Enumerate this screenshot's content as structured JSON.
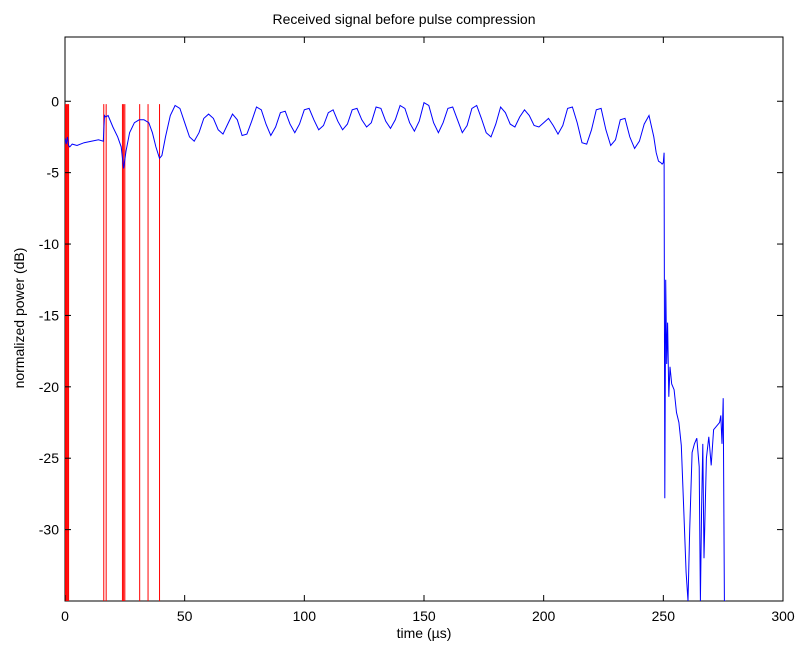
{
  "chart_data": {
    "type": "line",
    "title": "Received signal before pulse compression",
    "xlabel": "time (µs)",
    "ylabel": "normalized power (dB)",
    "xlim": [
      0,
      300
    ],
    "ylim": [
      -35,
      4.5
    ],
    "grid": false,
    "x_ticks": [
      0,
      50,
      100,
      150,
      200,
      250,
      300
    ],
    "y_ticks": [
      0,
      -5,
      -10,
      -15,
      -20,
      -25,
      -30
    ],
    "colors": {
      "signal": "#0000ff",
      "markers": "#ff0000"
    },
    "series": [
      {
        "x": [
          0,
          0.5,
          1,
          1.5,
          2,
          3,
          5,
          8,
          11,
          14,
          16,
          16.5,
          17,
          18,
          20,
          22,
          23.5,
          24.5,
          25.5,
          27,
          29,
          31,
          33,
          35,
          36.5,
          38,
          39.5,
          40.5,
          42,
          44,
          46,
          48,
          50,
          52,
          54,
          56,
          58,
          60,
          62,
          64,
          66,
          68,
          70,
          72,
          74,
          76,
          78,
          80,
          82,
          84,
          86,
          88,
          90,
          92,
          94,
          96,
          98,
          100,
          102,
          104,
          106,
          108,
          110,
          112,
          114,
          116,
          118,
          120,
          122,
          124,
          126,
          128,
          130,
          132,
          134,
          136,
          138,
          140,
          142,
          144,
          146,
          148,
          150,
          152,
          154,
          156,
          158,
          160,
          162,
          164,
          166,
          168,
          170,
          172,
          174,
          176,
          178,
          180,
          182,
          184,
          186,
          188,
          190,
          192,
          194,
          196,
          198,
          200,
          202,
          204,
          206,
          208,
          210,
          212,
          214,
          216,
          218,
          220,
          222,
          224,
          226,
          228,
          230,
          232,
          234,
          236,
          238,
          240,
          242,
          244,
          246,
          247,
          248,
          249,
          249.5,
          250,
          250.3,
          250.6,
          251,
          251.4,
          251.8,
          252.3,
          252.8,
          253.5,
          254.5,
          255.5,
          256.5,
          257.5,
          258.5,
          259.5,
          260.3,
          261,
          262,
          263,
          264,
          265,
          265.5,
          266,
          266.5,
          267,
          268,
          269,
          270,
          271,
          272,
          273,
          273.5,
          274,
          274.5,
          275,
          275.5,
          276
        ],
        "y": [
          -2.6,
          -3.0,
          -2.5,
          -3.1,
          -3.2,
          -3.0,
          -3.1,
          -2.9,
          -2.8,
          -2.7,
          -2.8,
          -1.0,
          -1.1,
          -1.0,
          -1.8,
          -2.5,
          -3.2,
          -4.7,
          -3.5,
          -2.2,
          -1.5,
          -1.3,
          -1.3,
          -1.5,
          -2.2,
          -3.2,
          -4.0,
          -3.8,
          -2.5,
          -1.0,
          -0.3,
          -0.5,
          -1.5,
          -2.5,
          -2.8,
          -2.2,
          -1.2,
          -0.9,
          -1.2,
          -2.0,
          -2.3,
          -1.6,
          -0.9,
          -1.3,
          -2.4,
          -2.3,
          -1.4,
          -0.4,
          -0.6,
          -1.6,
          -2.4,
          -1.8,
          -0.8,
          -0.7,
          -1.6,
          -2.2,
          -1.6,
          -0.6,
          -0.5,
          -1.3,
          -2.0,
          -1.7,
          -0.8,
          -0.6,
          -1.4,
          -2.0,
          -1.6,
          -0.6,
          -0.5,
          -1.3,
          -1.8,
          -1.5,
          -0.4,
          -0.5,
          -1.4,
          -1.9,
          -1.3,
          -0.3,
          -0.5,
          -1.5,
          -2.1,
          -1.4,
          -0.1,
          -0.3,
          -1.5,
          -2.2,
          -1.5,
          -0.5,
          -0.4,
          -1.3,
          -2.2,
          -1.7,
          -0.5,
          -0.3,
          -1.2,
          -2.2,
          -2.5,
          -1.6,
          -0.4,
          -0.8,
          -1.6,
          -1.8,
          -1.1,
          -0.6,
          -1.0,
          -1.7,
          -1.8,
          -1.5,
          -1.2,
          -1.7,
          -2.3,
          -1.7,
          -0.5,
          -0.4,
          -1.5,
          -2.9,
          -3.0,
          -2.0,
          -0.6,
          -0.5,
          -2.0,
          -3.1,
          -2.7,
          -1.3,
          -1.2,
          -2.5,
          -3.3,
          -2.8,
          -1.6,
          -1.0,
          -2.5,
          -3.6,
          -4.2,
          -4.3,
          -4.4,
          -4.3,
          -3.6,
          -27.8,
          -12.5,
          -18.4,
          -15.5,
          -20.7,
          -18.6,
          -19.8,
          -20.2,
          -21.8,
          -22.5,
          -24.1,
          -28.5,
          -33.0,
          -35.5,
          -30.0,
          -24.6,
          -24.0,
          -23.6,
          -25.6,
          -36.0,
          -28.5,
          -24.0,
          -32.0,
          -25.0,
          -23.5,
          -25.5,
          -23.0,
          -22.8,
          -22.6,
          -22.5,
          -22.0,
          -24.0,
          -20.8,
          -35.5,
          -36.0
        ]
      }
    ],
    "red_markers_x": [
      0,
      0.4,
      0.8,
      1.2,
      1.5,
      16.2,
      17.2,
      24.0,
      24.5,
      25.0,
      31.2,
      34.7,
      39.5
    ],
    "red_markers_top": -0.2
  }
}
